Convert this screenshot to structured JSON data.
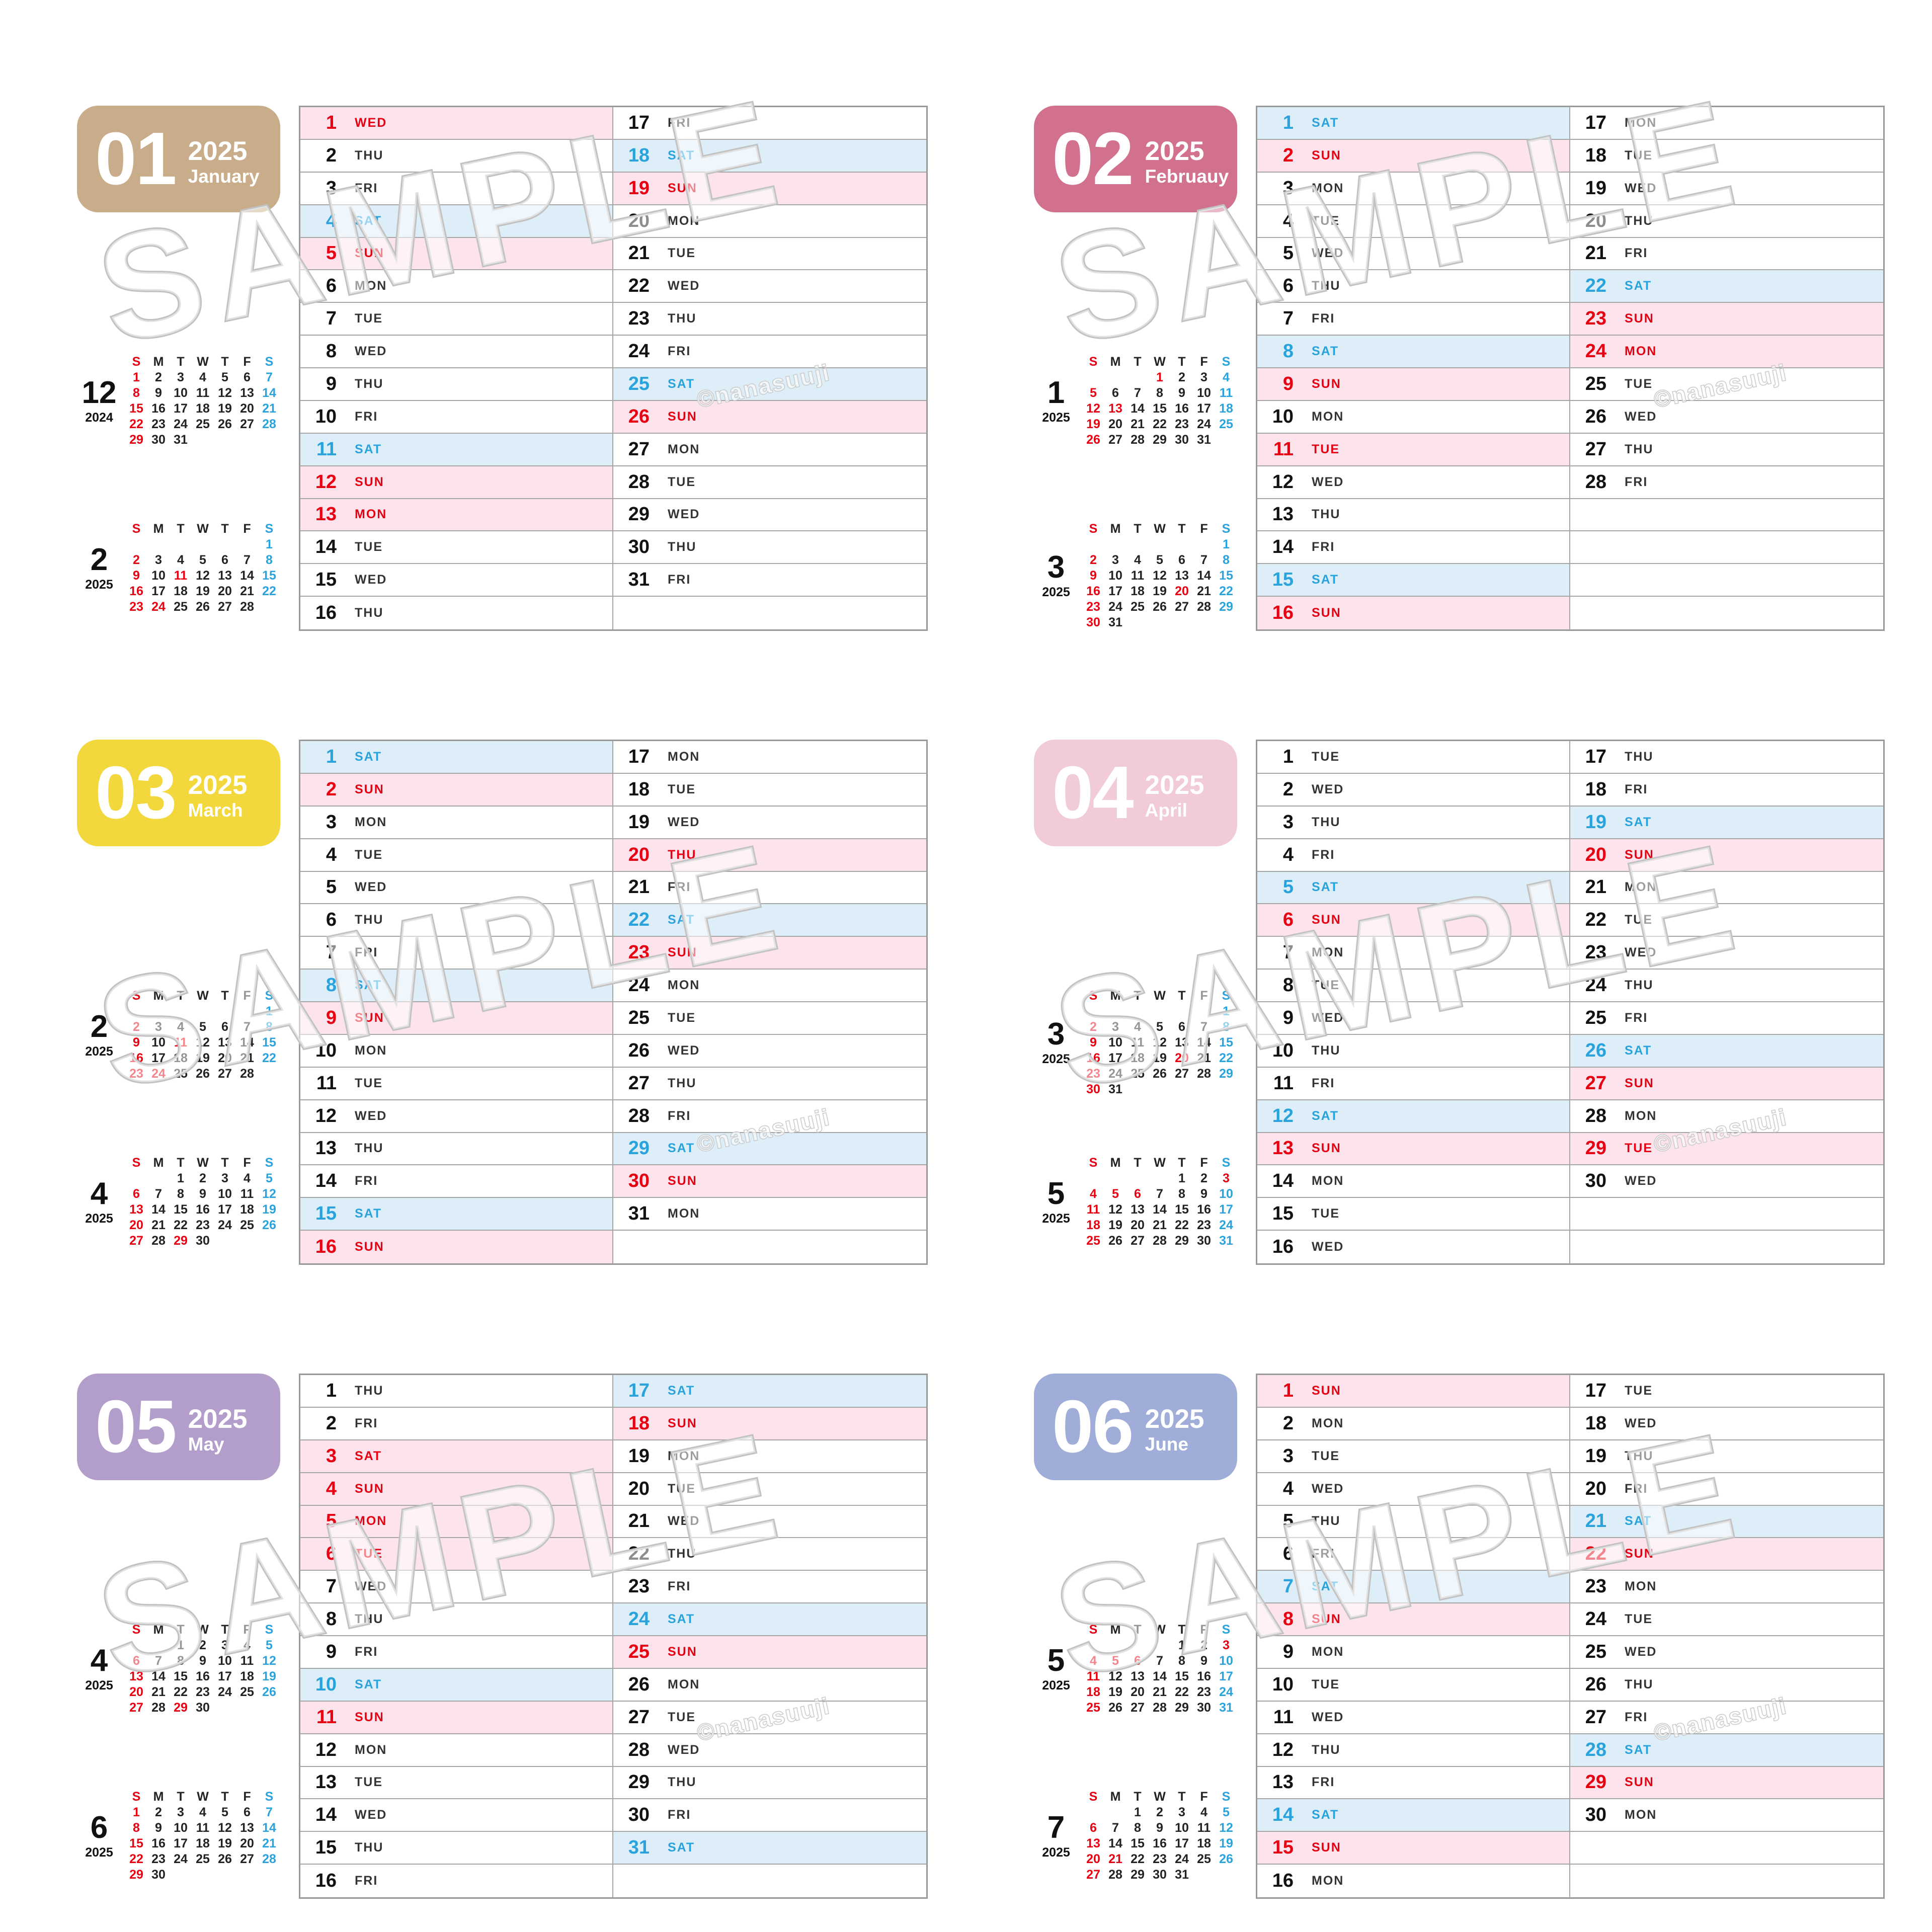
{
  "watermark": {
    "text": "SAMPLE",
    "credit": "©nanasuuji"
  },
  "colors": {
    "red": "#e60012",
    "blue": "#2aa3dc",
    "sunday_bg": "#fce3ec",
    "saturday_bg": "#ddeef8",
    "grid_border": "#a6a6a6",
    "badge_01": "#c9ad8a",
    "badge_02": "#d2718d",
    "badge_03": "#f3d83d",
    "badge_04": "#f1cbd9",
    "badge_05": "#b29dcb",
    "badge_06": "#9fadd8"
  },
  "dow_header": [
    "S",
    "M",
    "T",
    "W",
    "T",
    "F",
    "S"
  ],
  "panels": [
    {
      "badge": {
        "num": "01",
        "year": "2025",
        "month": "January",
        "color": "#c9ad8a"
      },
      "minis": [
        {
          "num": "12",
          "year": "2024",
          "first_dow": 0,
          "days": 31,
          "holidays": []
        },
        {
          "num": "2",
          "year": "2025",
          "first_dow": 6,
          "days": 28,
          "holidays": [
            11,
            24
          ]
        }
      ],
      "list": [
        [
          1,
          "WED",
          "hol"
        ],
        [
          2,
          "THU",
          ""
        ],
        [
          3,
          "FRI",
          ""
        ],
        [
          4,
          "SAT",
          "sat"
        ],
        [
          5,
          "SUN",
          "sun"
        ],
        [
          6,
          "MON",
          ""
        ],
        [
          7,
          "TUE",
          ""
        ],
        [
          8,
          "WED",
          ""
        ],
        [
          9,
          "THU",
          ""
        ],
        [
          10,
          "FRI",
          ""
        ],
        [
          11,
          "SAT",
          "sat"
        ],
        [
          12,
          "SUN",
          "sun"
        ],
        [
          13,
          "MON",
          "hol"
        ],
        [
          14,
          "TUE",
          ""
        ],
        [
          15,
          "WED",
          ""
        ],
        [
          16,
          "THU",
          ""
        ],
        [
          17,
          "FRI",
          ""
        ],
        [
          18,
          "SAT",
          "sat"
        ],
        [
          19,
          "SUN",
          "sun"
        ],
        [
          20,
          "MON",
          ""
        ],
        [
          21,
          "TUE",
          ""
        ],
        [
          22,
          "WED",
          ""
        ],
        [
          23,
          "THU",
          ""
        ],
        [
          24,
          "FRI",
          ""
        ],
        [
          25,
          "SAT",
          "sat"
        ],
        [
          26,
          "SUN",
          "sun"
        ],
        [
          27,
          "MON",
          ""
        ],
        [
          28,
          "TUE",
          ""
        ],
        [
          29,
          "WED",
          ""
        ],
        [
          30,
          "THU",
          ""
        ],
        [
          31,
          "FRI",
          ""
        ]
      ]
    },
    {
      "badge": {
        "num": "02",
        "year": "2025",
        "month": "Februauy",
        "color": "#d2718d"
      },
      "minis": [
        {
          "num": "1",
          "year": "2025",
          "first_dow": 3,
          "days": 31,
          "holidays": [
            1,
            13
          ]
        },
        {
          "num": "3",
          "year": "2025",
          "first_dow": 6,
          "days": 31,
          "holidays": [
            20
          ]
        }
      ],
      "list": [
        [
          1,
          "SAT",
          "sat"
        ],
        [
          2,
          "SUN",
          "sun"
        ],
        [
          3,
          "MON",
          ""
        ],
        [
          4,
          "TUE",
          ""
        ],
        [
          5,
          "WED",
          ""
        ],
        [
          6,
          "THU",
          ""
        ],
        [
          7,
          "FRI",
          ""
        ],
        [
          8,
          "SAT",
          "sat"
        ],
        [
          9,
          "SUN",
          "sun"
        ],
        [
          10,
          "MON",
          ""
        ],
        [
          11,
          "TUE",
          "hol"
        ],
        [
          12,
          "WED",
          ""
        ],
        [
          13,
          "THU",
          ""
        ],
        [
          14,
          "FRI",
          ""
        ],
        [
          15,
          "SAT",
          "sat"
        ],
        [
          16,
          "SUN",
          "sun"
        ],
        [
          17,
          "MON",
          ""
        ],
        [
          18,
          "TUE",
          ""
        ],
        [
          19,
          "WED",
          ""
        ],
        [
          20,
          "THU",
          ""
        ],
        [
          21,
          "FRI",
          ""
        ],
        [
          22,
          "SAT",
          "sat"
        ],
        [
          23,
          "SUN",
          "sun"
        ],
        [
          24,
          "MON",
          "hol"
        ],
        [
          25,
          "TUE",
          ""
        ],
        [
          26,
          "WED",
          ""
        ],
        [
          27,
          "THU",
          ""
        ],
        [
          28,
          "FRI",
          ""
        ]
      ]
    },
    {
      "badge": {
        "num": "03",
        "year": "2025",
        "month": "March",
        "color": "#f3d83d"
      },
      "minis": [
        {
          "num": "2",
          "year": "2025",
          "first_dow": 6,
          "days": 28,
          "holidays": [
            11,
            24
          ]
        },
        {
          "num": "4",
          "year": "2025",
          "first_dow": 2,
          "days": 30,
          "holidays": [
            29
          ]
        }
      ],
      "list": [
        [
          1,
          "SAT",
          "sat"
        ],
        [
          2,
          "SUN",
          "sun"
        ],
        [
          3,
          "MON",
          ""
        ],
        [
          4,
          "TUE",
          ""
        ],
        [
          5,
          "WED",
          ""
        ],
        [
          6,
          "THU",
          ""
        ],
        [
          7,
          "FRI",
          ""
        ],
        [
          8,
          "SAT",
          "sat"
        ],
        [
          9,
          "SUN",
          "sun"
        ],
        [
          10,
          "MON",
          ""
        ],
        [
          11,
          "TUE",
          ""
        ],
        [
          12,
          "WED",
          ""
        ],
        [
          13,
          "THU",
          ""
        ],
        [
          14,
          "FRI",
          ""
        ],
        [
          15,
          "SAT",
          "sat"
        ],
        [
          16,
          "SUN",
          "sun"
        ],
        [
          17,
          "MON",
          ""
        ],
        [
          18,
          "TUE",
          ""
        ],
        [
          19,
          "WED",
          ""
        ],
        [
          20,
          "THU",
          "hol"
        ],
        [
          21,
          "FRI",
          ""
        ],
        [
          22,
          "SAT",
          "sat"
        ],
        [
          23,
          "SUN",
          "sun"
        ],
        [
          24,
          "MON",
          ""
        ],
        [
          25,
          "TUE",
          ""
        ],
        [
          26,
          "WED",
          ""
        ],
        [
          27,
          "THU",
          ""
        ],
        [
          28,
          "FRI",
          ""
        ],
        [
          29,
          "SAT",
          "sat"
        ],
        [
          30,
          "SUN",
          "sun"
        ],
        [
          31,
          "MON",
          ""
        ]
      ]
    },
    {
      "badge": {
        "num": "04",
        "year": "2025",
        "month": "April",
        "color": "#f1cbd9"
      },
      "minis": [
        {
          "num": "3",
          "year": "2025",
          "first_dow": 6,
          "days": 31,
          "holidays": [
            20
          ]
        },
        {
          "num": "5",
          "year": "2025",
          "first_dow": 4,
          "days": 31,
          "holidays": [
            3,
            5,
            6
          ]
        }
      ],
      "list": [
        [
          1,
          "TUE",
          ""
        ],
        [
          2,
          "WED",
          ""
        ],
        [
          3,
          "THU",
          ""
        ],
        [
          4,
          "FRI",
          ""
        ],
        [
          5,
          "SAT",
          "sat"
        ],
        [
          6,
          "SUN",
          "sun"
        ],
        [
          7,
          "MON",
          ""
        ],
        [
          8,
          "TUE",
          ""
        ],
        [
          9,
          "WED",
          ""
        ],
        [
          10,
          "THU",
          ""
        ],
        [
          11,
          "FRI",
          ""
        ],
        [
          12,
          "SAT",
          "sat"
        ],
        [
          13,
          "SUN",
          "sun"
        ],
        [
          14,
          "MON",
          ""
        ],
        [
          15,
          "TUE",
          ""
        ],
        [
          16,
          "WED",
          ""
        ],
        [
          17,
          "THU",
          ""
        ],
        [
          18,
          "FRI",
          ""
        ],
        [
          19,
          "SAT",
          "sat"
        ],
        [
          20,
          "SUN",
          "sun"
        ],
        [
          21,
          "MON",
          ""
        ],
        [
          22,
          "TUE",
          ""
        ],
        [
          23,
          "WED",
          ""
        ],
        [
          24,
          "THU",
          ""
        ],
        [
          25,
          "FRI",
          ""
        ],
        [
          26,
          "SAT",
          "sat"
        ],
        [
          27,
          "SUN",
          "sun"
        ],
        [
          28,
          "MON",
          ""
        ],
        [
          29,
          "TUE",
          "hol"
        ],
        [
          30,
          "WED",
          ""
        ]
      ]
    },
    {
      "badge": {
        "num": "05",
        "year": "2025",
        "month": "May",
        "color": "#b29dcb"
      },
      "minis": [
        {
          "num": "4",
          "year": "2025",
          "first_dow": 2,
          "days": 30,
          "holidays": [
            29
          ]
        },
        {
          "num": "6",
          "year": "2025",
          "first_dow": 0,
          "days": 30,
          "holidays": []
        }
      ],
      "list": [
        [
          1,
          "THU",
          ""
        ],
        [
          2,
          "FRI",
          ""
        ],
        [
          3,
          "SAT",
          "hol"
        ],
        [
          4,
          "SUN",
          "sun"
        ],
        [
          5,
          "MON",
          "hol"
        ],
        [
          6,
          "TUE",
          "hol"
        ],
        [
          7,
          "WED",
          ""
        ],
        [
          8,
          "THU",
          ""
        ],
        [
          9,
          "FRI",
          ""
        ],
        [
          10,
          "SAT",
          "sat"
        ],
        [
          11,
          "SUN",
          "sun"
        ],
        [
          12,
          "MON",
          ""
        ],
        [
          13,
          "TUE",
          ""
        ],
        [
          14,
          "WED",
          ""
        ],
        [
          15,
          "THU",
          ""
        ],
        [
          16,
          "FRI",
          ""
        ],
        [
          17,
          "SAT",
          "sat"
        ],
        [
          18,
          "SUN",
          "sun"
        ],
        [
          19,
          "MON",
          ""
        ],
        [
          20,
          "TUE",
          ""
        ],
        [
          21,
          "WED",
          ""
        ],
        [
          22,
          "THU",
          ""
        ],
        [
          23,
          "FRI",
          ""
        ],
        [
          24,
          "SAT",
          "sat"
        ],
        [
          25,
          "SUN",
          "sun"
        ],
        [
          26,
          "MON",
          ""
        ],
        [
          27,
          "TUE",
          ""
        ],
        [
          28,
          "WED",
          ""
        ],
        [
          29,
          "THU",
          ""
        ],
        [
          30,
          "FRI",
          ""
        ],
        [
          31,
          "SAT",
          "sat"
        ]
      ]
    },
    {
      "badge": {
        "num": "06",
        "year": "2025",
        "month": "June",
        "color": "#9fadd8"
      },
      "minis": [
        {
          "num": "5",
          "year": "2025",
          "first_dow": 4,
          "days": 31,
          "holidays": [
            3,
            5,
            6
          ]
        },
        {
          "num": "7",
          "year": "2025",
          "first_dow": 2,
          "days": 31,
          "holidays": [
            21
          ]
        }
      ],
      "list": [
        [
          1,
          "SUN",
          "sun"
        ],
        [
          2,
          "MON",
          ""
        ],
        [
          3,
          "TUE",
          ""
        ],
        [
          4,
          "WED",
          ""
        ],
        [
          5,
          "THU",
          ""
        ],
        [
          6,
          "FRI",
          ""
        ],
        [
          7,
          "SAT",
          "sat"
        ],
        [
          8,
          "SUN",
          "sun"
        ],
        [
          9,
          "MON",
          ""
        ],
        [
          10,
          "TUE",
          ""
        ],
        [
          11,
          "WED",
          ""
        ],
        [
          12,
          "THU",
          ""
        ],
        [
          13,
          "FRI",
          ""
        ],
        [
          14,
          "SAT",
          "sat"
        ],
        [
          15,
          "SUN",
          "sun"
        ],
        [
          16,
          "MON",
          ""
        ],
        [
          17,
          "TUE",
          ""
        ],
        [
          18,
          "WED",
          ""
        ],
        [
          19,
          "THU",
          ""
        ],
        [
          20,
          "FRI",
          ""
        ],
        [
          21,
          "SAT",
          "sat"
        ],
        [
          22,
          "SUN",
          "sun"
        ],
        [
          23,
          "MON",
          ""
        ],
        [
          24,
          "TUE",
          ""
        ],
        [
          25,
          "WED",
          ""
        ],
        [
          26,
          "THU",
          ""
        ],
        [
          27,
          "FRI",
          ""
        ],
        [
          28,
          "SAT",
          "sat"
        ],
        [
          29,
          "SUN",
          "sun"
        ],
        [
          30,
          "MON",
          ""
        ]
      ]
    }
  ]
}
